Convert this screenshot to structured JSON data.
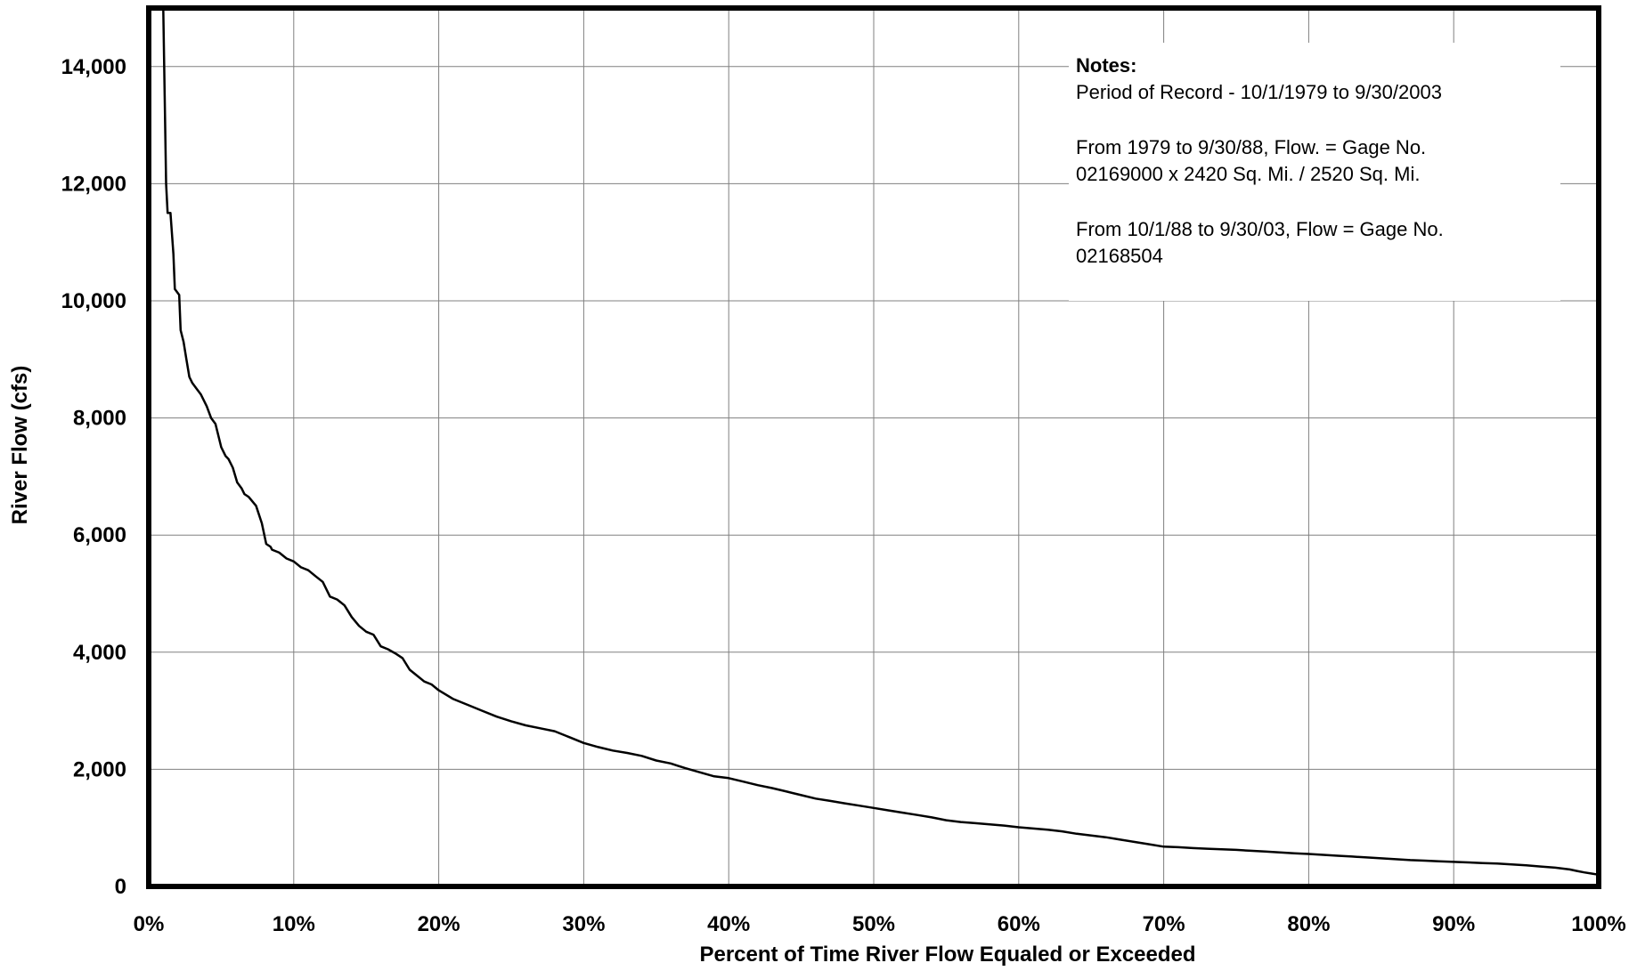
{
  "chart_data": {
    "type": "line",
    "title": "",
    "xlabel": "Percent of Time River Flow Equaled or Exceeded",
    "ylabel": "River Flow (cfs)",
    "xlim": [
      0,
      100
    ],
    "ylim": [
      0,
      15000
    ],
    "x_ticks": [
      0,
      10,
      20,
      30,
      40,
      50,
      60,
      70,
      80,
      90,
      100
    ],
    "x_tick_labels": [
      "0%",
      "10%",
      "20%",
      "30%",
      "40%",
      "50%",
      "60%",
      "70%",
      "80%",
      "90%",
      "100%"
    ],
    "y_ticks": [
      0,
      2000,
      4000,
      6000,
      8000,
      10000,
      12000,
      14000
    ],
    "y_tick_labels": [
      "0",
      "2,000",
      "4,000",
      "6,000",
      "8,000",
      "10,000",
      "12,000",
      "14,000"
    ],
    "grid": true,
    "colors": {
      "line": "#000000",
      "grid": "#808080",
      "frame": "#000000",
      "background": "#ffffff"
    },
    "notes": {
      "heading": "Notes:",
      "lines": [
        "Period of Record - 10/1/1979 to 9/30/2003",
        "",
        "From 1979 to 9/30/88, Flow. = Gage No.",
        "02169000 x 2420 Sq. Mi. / 2520 Sq. Mi.",
        "",
        "From 10/1/88 to 9/30/03, Flow = Gage No.",
        "02168504"
      ]
    },
    "series": [
      {
        "x": [
          1.0,
          1.1,
          1.2,
          1.3,
          1.5,
          1.7,
          1.8,
          2.1,
          2.2,
          2.4,
          2.6,
          2.8,
          3.0,
          3.3,
          3.6,
          4.0,
          4.3,
          4.6,
          5.0,
          5.3,
          5.5,
          5.8,
          6.1,
          6.4,
          6.6,
          6.9,
          7.4,
          7.8,
          8.1,
          8.4,
          8.5,
          9.0,
          9.5,
          10.0,
          10.5,
          11.0,
          11.5,
          12.0,
          12.5,
          13.0,
          13.5,
          14.0,
          14.5,
          15.0,
          15.5,
          16.0,
          16.5,
          17.0,
          17.5,
          18.0,
          18.5,
          19.0,
          19.5,
          20.0,
          21.0,
          22.0,
          23.0,
          24.0,
          25.0,
          26.0,
          27.0,
          28.0,
          29.0,
          30.0,
          31.0,
          32.0,
          33.0,
          34.0,
          35.0,
          36.0,
          37.0,
          38.0,
          39.0,
          40.0,
          41.0,
          42.0,
          43.0,
          44.0,
          45.0,
          46.0,
          47.0,
          48.0,
          49.0,
          50.0,
          51.0,
          52.0,
          53.0,
          54.0,
          55.0,
          56.0,
          57.0,
          58.0,
          59.0,
          60.0,
          61.0,
          62.0,
          63.0,
          64.0,
          65.0,
          66.0,
          67.0,
          68.0,
          69.0,
          70.0,
          71.0,
          72.0,
          73.0,
          74.0,
          75.0,
          76.0,
          77.0,
          78.0,
          79.0,
          80.0,
          81.0,
          82.0,
          83.0,
          84.0,
          85.0,
          86.0,
          87.0,
          88.0,
          89.0,
          90.0,
          91.0,
          92.0,
          93.0,
          94.0,
          95.0,
          96.0,
          97.0,
          98.0,
          98.5,
          99.0,
          99.5,
          100.0
        ],
        "y": [
          15000,
          13500,
          12000,
          11500,
          11500,
          10800,
          10200,
          10100,
          9500,
          9300,
          9000,
          8700,
          8600,
          8500,
          8400,
          8200,
          8000,
          7900,
          7500,
          7350,
          7300,
          7150,
          6900,
          6800,
          6700,
          6650,
          6500,
          6200,
          5850,
          5800,
          5750,
          5700,
          5600,
          5550,
          5450,
          5400,
          5300,
          5200,
          4950,
          4900,
          4800,
          4600,
          4450,
          4350,
          4300,
          4100,
          4050,
          3980,
          3900,
          3700,
          3600,
          3500,
          3450,
          3350,
          3200,
          3100,
          3000,
          2900,
          2820,
          2750,
          2700,
          2650,
          2550,
          2450,
          2380,
          2320,
          2280,
          2230,
          2150,
          2100,
          2020,
          1950,
          1880,
          1850,
          1790,
          1730,
          1680,
          1620,
          1560,
          1500,
          1460,
          1420,
          1380,
          1340,
          1300,
          1260,
          1220,
          1180,
          1130,
          1100,
          1080,
          1060,
          1040,
          1010,
          990,
          970,
          940,
          900,
          870,
          840,
          800,
          760,
          720,
          680,
          670,
          655,
          645,
          635,
          625,
          610,
          595,
          580,
          565,
          555,
          540,
          525,
          510,
          495,
          480,
          465,
          450,
          440,
          430,
          420,
          410,
          400,
          390,
          375,
          360,
          340,
          320,
          290,
          265,
          240,
          220,
          200
        ]
      }
    ]
  }
}
